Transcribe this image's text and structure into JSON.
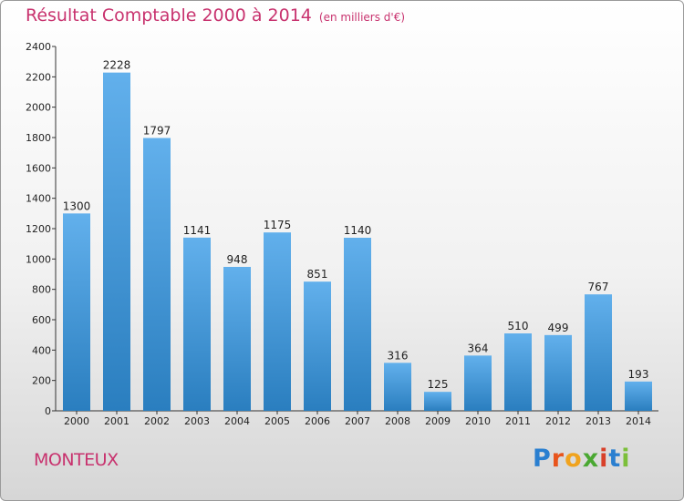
{
  "title": "Résultat Comptable 2000 à 2014",
  "unit": "(en milliers d'€)",
  "commune": "MONTEUX",
  "logo": [
    "P",
    "r",
    "o",
    "x",
    "i",
    "t",
    "i"
  ],
  "colors": {
    "accent": "#c8326e",
    "bar_top": "#62b0ec",
    "bar_bottom": "#2a7ebf"
  },
  "chart_data": {
    "type": "bar",
    "title": "Résultat Comptable 2000 à 2014",
    "xlabel": "",
    "ylabel": "",
    "ylim": [
      0,
      2400
    ],
    "yticks": [
      0,
      200,
      400,
      600,
      800,
      1000,
      1200,
      1400,
      1600,
      1800,
      2000,
      2200,
      2400
    ],
    "grid": false,
    "categories": [
      "2000",
      "2001",
      "2002",
      "2003",
      "2004",
      "2005",
      "2006",
      "2007",
      "2008",
      "2009",
      "2010",
      "2011",
      "2012",
      "2013",
      "2014"
    ],
    "values": [
      1300,
      2228,
      1797,
      1141,
      948,
      1175,
      851,
      1140,
      316,
      125,
      364,
      510,
      499,
      767,
      193
    ]
  }
}
